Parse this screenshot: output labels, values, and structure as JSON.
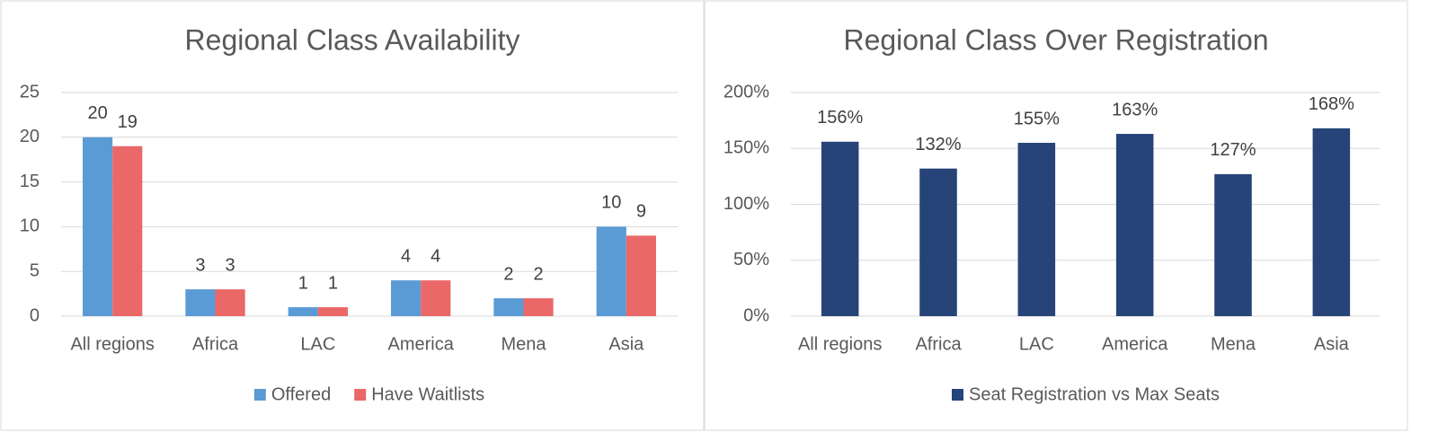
{
  "chart_data": [
    {
      "type": "bar",
      "title": "Regional Class Availability",
      "categories": [
        "All regions",
        "Africa",
        "LAC",
        "America",
        "Mena",
        "Asia"
      ],
      "series": [
        {
          "name": "Offered",
          "color": "#5b9bd5",
          "values": [
            20,
            3,
            1,
            4,
            2,
            10
          ]
        },
        {
          "name": "Have Waitlists",
          "color": "#ea6868",
          "values": [
            19,
            3,
            1,
            4,
            2,
            9
          ]
        }
      ],
      "ylim": [
        0,
        25
      ],
      "yticks": [
        0,
        5,
        10,
        15,
        20,
        25
      ],
      "grid": true,
      "legend": "bottom"
    },
    {
      "type": "bar",
      "title": "Regional Class Over Registration",
      "categories": [
        "All regions",
        "Africa",
        "LAC",
        "America",
        "Mena",
        "Asia"
      ],
      "series": [
        {
          "name": "Seat Registration vs Max Seats",
          "color": "#264478",
          "values": [
            156,
            132,
            155,
            163,
            127,
            168
          ],
          "value_labels": [
            "156%",
            "132%",
            "155%",
            "163%",
            "127%",
            "168%"
          ]
        }
      ],
      "ylim": [
        0,
        200
      ],
      "yticks": [
        {
          "value": 0,
          "label": "0%"
        },
        {
          "value": 50,
          "label": "50%"
        },
        {
          "value": 100,
          "label": "100%"
        },
        {
          "value": 150,
          "label": "150%"
        },
        {
          "value": 200,
          "label": "200%"
        }
      ],
      "grid": true,
      "legend": "bottom"
    }
  ]
}
